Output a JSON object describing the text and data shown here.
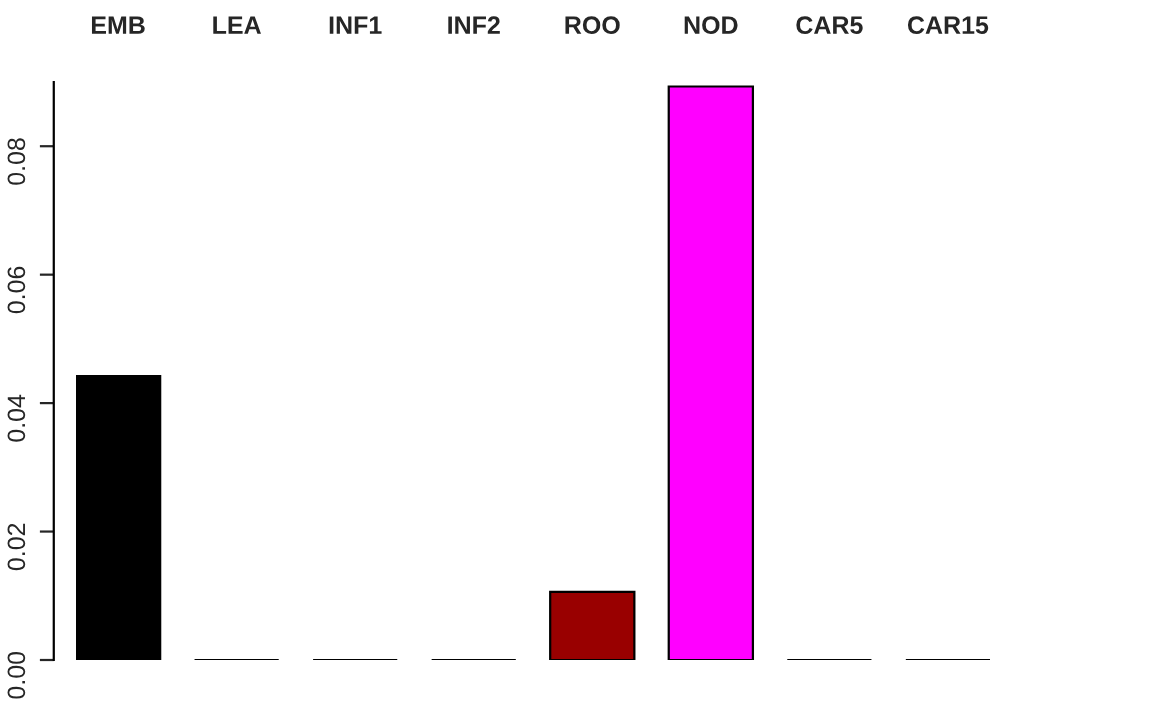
{
  "chart_data": {
    "type": "bar",
    "categories": [
      "EMB",
      "LEA",
      "INF1",
      "INF2",
      "ROO",
      "NOD",
      "CAR5",
      "CAR15"
    ],
    "values": [
      0.0442,
      0,
      0,
      0,
      0.0106,
      0.0893,
      0,
      0
    ],
    "colors": [
      "#000000",
      "#000000",
      "#000000",
      "#000000",
      "#990000",
      "#ff00ff",
      "#000000",
      "#000000"
    ],
    "ylim": [
      0,
      0.09
    ],
    "yticks": [
      {
        "value": 0,
        "label": "0.00"
      },
      {
        "value": 0.02,
        "label": "0.02"
      },
      {
        "value": 0.04,
        "label": "0.04"
      },
      {
        "value": 0.06,
        "label": "0.06"
      },
      {
        "value": 0.08,
        "label": "0.08"
      }
    ],
    "grid": false,
    "legend": false
  }
}
